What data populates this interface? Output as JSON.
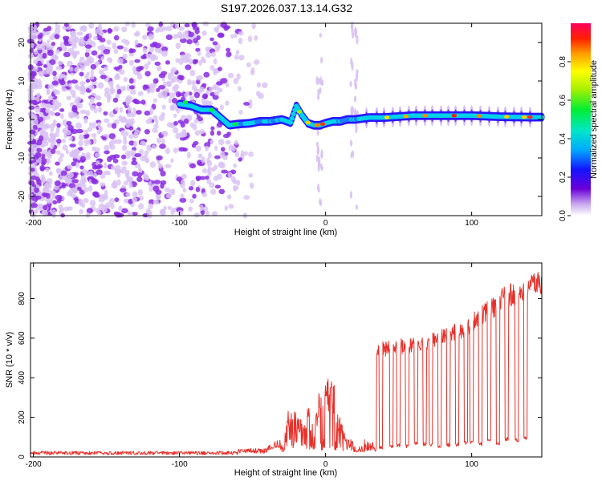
{
  "title": "S197.2026.037.13.14.G32",
  "colors": {
    "background": "#ffffff",
    "frame": "#000000",
    "snr_line": "#e8302a",
    "scatter_purple": "#8a2be2",
    "scatter_light": "#d8c2f2"
  },
  "chart_data": [
    {
      "type": "heatmap",
      "name": "spectrogram",
      "xlabel": "Height of straight line (km)",
      "ylabel": "Frequency (Hz)",
      "xlim": [
        -202,
        148
      ],
      "ylim": [
        -25,
        25
      ],
      "xticks": [
        -200,
        -100,
        0,
        100
      ],
      "xtick_labels": [
        "-200",
        "-100",
        "0",
        "100"
      ],
      "yticks": [
        -20,
        -10,
        0,
        10,
        20
      ],
      "ytick_labels": [
        "-20",
        "-10",
        "0",
        "10",
        "20"
      ],
      "colorbar": {
        "label": "Normalized spectral amplitude",
        "range": [
          0,
          1
        ],
        "ticks": [
          0.0,
          0.2,
          0.4,
          0.6,
          0.8
        ],
        "tick_labels": [
          "0.0",
          "0.2",
          "0.4",
          "0.6",
          "0.8"
        ]
      },
      "ridge": {
        "x": [
          -100,
          -92,
          -85,
          -78,
          -72,
          -66,
          -60,
          -52,
          -45,
          -38,
          -30,
          -24,
          -20,
          -16,
          -12,
          -8,
          -4,
          0,
          5,
          10,
          15,
          20,
          30,
          40,
          60,
          80,
          100,
          120,
          140,
          148
        ],
        "freq": [
          4.0,
          3.5,
          2.5,
          2.5,
          0.5,
          -1.5,
          -1.2,
          -1.0,
          -0.5,
          -0.5,
          0.0,
          -0.8,
          3.5,
          1.0,
          -1.0,
          -1.5,
          -1.5,
          -1.0,
          -0.5,
          -0.5,
          0.0,
          0.0,
          0.5,
          0.5,
          1.0,
          1.0,
          1.0,
          0.7,
          0.6,
          0.6
        ]
      }
    },
    {
      "type": "line",
      "name": "snr",
      "xlabel": "Height of straight line (km)",
      "ylabel": "SNR (10 * v/v)",
      "xlim": [
        -202,
        148
      ],
      "ylim": [
        0,
        980
      ],
      "xticks": [
        -200,
        -100,
        0,
        100
      ],
      "xtick_labels": [
        "-200",
        "-100",
        "0",
        "100"
      ],
      "yticks": [
        0,
        200,
        400,
        600,
        800
      ],
      "ytick_labels": [
        "0",
        "200",
        "400",
        "600",
        "800"
      ],
      "baseline_segments": [
        {
          "x_start": -202,
          "x_end": -60,
          "snr": 20
        },
        {
          "x_start": -60,
          "x_end": -40,
          "snr": 30
        },
        {
          "x_start": -40,
          "x_end": -30,
          "snr": 60
        }
      ],
      "envelope": {
        "x": [
          -28,
          -25,
          -20,
          -15,
          -12,
          -8,
          -5,
          -2,
          0,
          3,
          6,
          9,
          12,
          15,
          20,
          25,
          30,
          33
        ],
        "snr": [
          180,
          230,
          200,
          170,
          280,
          110,
          300,
          380,
          400,
          370,
          330,
          200,
          150,
          60,
          30,
          40,
          50,
          60
        ]
      },
      "plateaus": [
        {
          "x_start": 35,
          "x_end": 70,
          "snr_start": 540,
          "snr_end": 580
        },
        {
          "x_start": 70,
          "x_end": 100,
          "snr_start": 580,
          "snr_end": 660
        },
        {
          "x_start": 100,
          "x_end": 120,
          "snr_start": 680,
          "snr_end": 780
        },
        {
          "x_start": 120,
          "x_end": 148,
          "snr_start": 800,
          "snr_end": 880
        }
      ],
      "dropouts_x": [
        38,
        45,
        50,
        56,
        62,
        68,
        72,
        78,
        84,
        90,
        96,
        100,
        106,
        112,
        118,
        124,
        131,
        137
      ],
      "dropout_snr": [
        50,
        55,
        60,
        55,
        70,
        65,
        60,
        55,
        60,
        65,
        70,
        75,
        65,
        80,
        70,
        90,
        85,
        95
      ]
    }
  ]
}
